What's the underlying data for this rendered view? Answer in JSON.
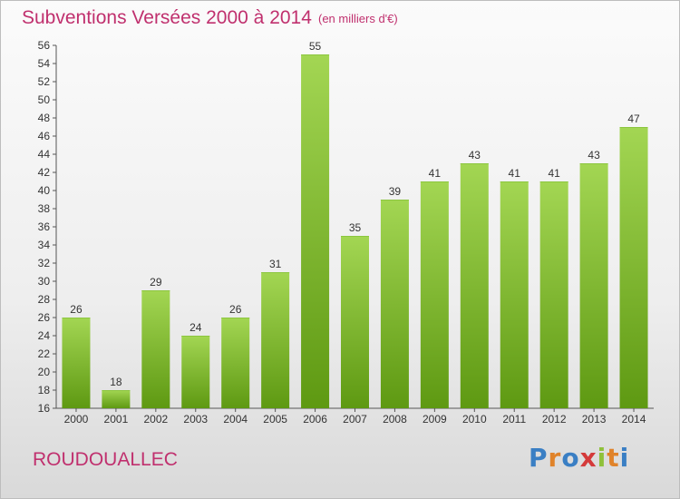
{
  "header": {
    "title": "Subventions Versées 2000 à 2014",
    "unit_note": "(en milliers d'€)"
  },
  "footer": {
    "commune": "ROUDOUALLEC",
    "logo_text": "Proxiti"
  },
  "colors": {
    "title": "#c0306e",
    "bar_top": "#9ed14c",
    "bar_bottom": "#5f9a12",
    "logo_letters": [
      "#3a7fc4",
      "#e0832a",
      "#3a7fc4",
      "#d43a3a",
      "#8fc13a",
      "#e0832a",
      "#3a7fc4"
    ]
  },
  "chart_data": {
    "type": "bar",
    "title": "Subventions Versées 2000 à 2014",
    "subtitle": "(en milliers d'€)",
    "categories": [
      "2000",
      "2001",
      "2002",
      "2003",
      "2004",
      "2005",
      "2006",
      "2007",
      "2008",
      "2009",
      "2010",
      "2011",
      "2012",
      "2013",
      "2014"
    ],
    "values": [
      26,
      18,
      29,
      24,
      26,
      31,
      55,
      35,
      39,
      41,
      43,
      41,
      41,
      43,
      47
    ],
    "ylim": [
      16,
      56
    ],
    "yticks": [
      16,
      18,
      20,
      22,
      24,
      26,
      28,
      30,
      32,
      34,
      36,
      38,
      40,
      42,
      44,
      46,
      48,
      50,
      52,
      54,
      56
    ],
    "grid": false,
    "xlabel": "",
    "ylabel": ""
  }
}
